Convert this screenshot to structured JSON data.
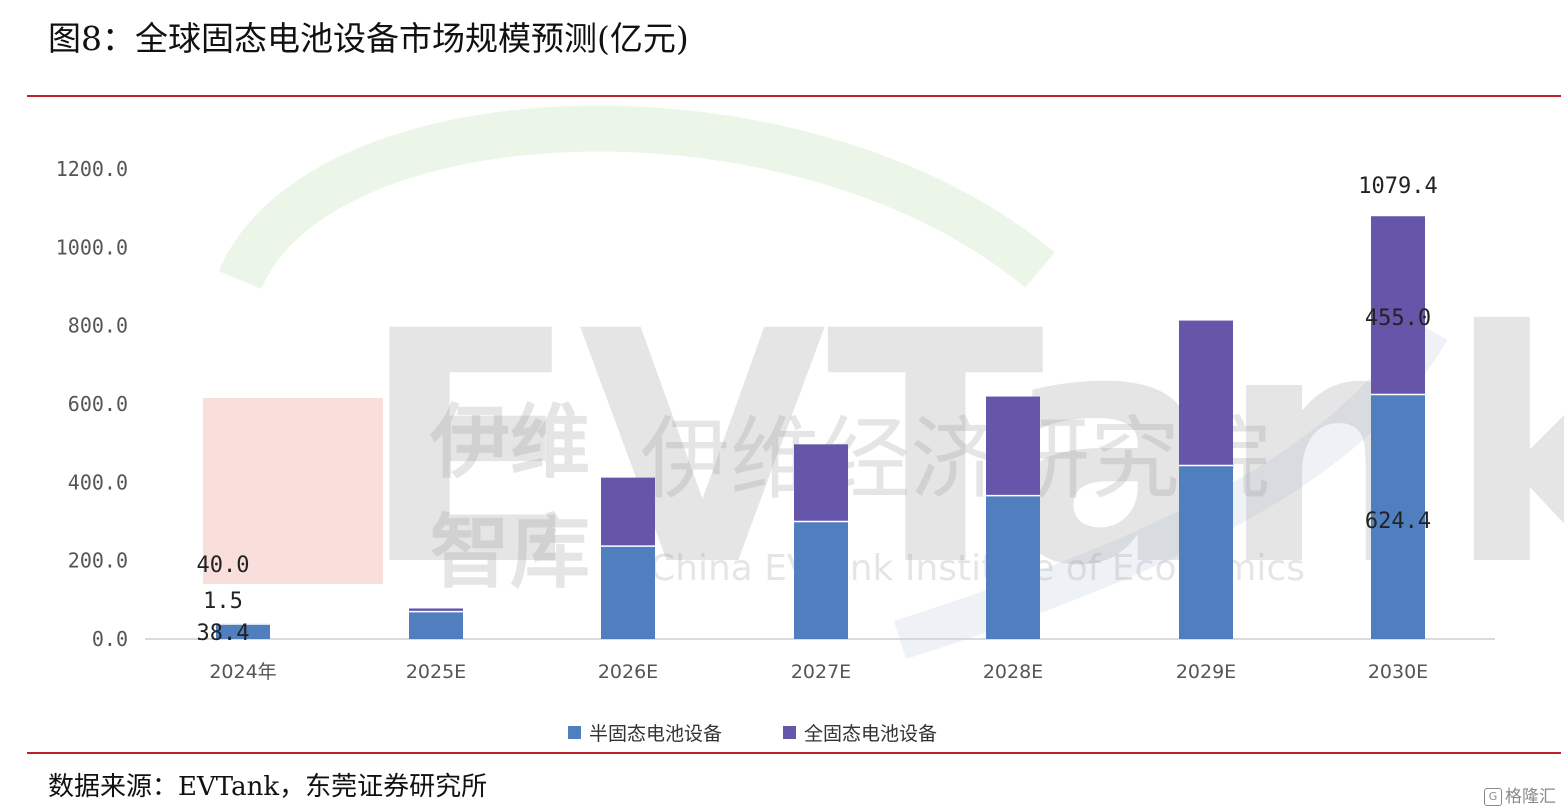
{
  "title": "图8：全球固态电池设备市场规模预测(亿元)",
  "source": "数据来源：EVTank，东莞证券研究所",
  "logo_text": "格隆汇",
  "watermark": {
    "big": "EVTank",
    "cn_short_1": "伊维",
    "cn_short_2": "智库",
    "cn_long": "伊维经济研究院",
    "en": "China EVTank Institute of Economics"
  },
  "colors": {
    "semi": "#4f7fbf",
    "full": "#6556a9",
    "rule": "#b8242a"
  },
  "chart_data": {
    "type": "bar",
    "stacked": true,
    "categories": [
      "2024年",
      "2025E",
      "2026E",
      "2027E",
      "2028E",
      "2029E",
      "2030E"
    ],
    "series": [
      {
        "name": "半固态电池设备",
        "values": [
          38.4,
          70,
          237,
          300,
          366,
          443,
          624.4
        ]
      },
      {
        "name": "全固态电池设备",
        "values": [
          1.5,
          8,
          175,
          197,
          253,
          370,
          455.0
        ]
      }
    ],
    "ylim": [
      0,
      1200
    ],
    "yticks": [
      "0.0",
      "200.0",
      "400.0",
      "600.0",
      "800.0",
      "1000.0",
      "1200.0"
    ],
    "data_labels": [
      {
        "text": "40.0",
        "category": "2024年",
        "kind": "total"
      },
      {
        "text": "1.5",
        "category": "2024年",
        "kind": "full"
      },
      {
        "text": "38.4",
        "category": "2024年",
        "kind": "semi"
      },
      {
        "text": "1079.4",
        "category": "2030E",
        "kind": "total"
      },
      {
        "text": "455.0",
        "category": "2030E",
        "kind": "full"
      },
      {
        "text": "624.4",
        "category": "2030E",
        "kind": "semi"
      }
    ],
    "legend": "bottom-center",
    "grid": false
  }
}
